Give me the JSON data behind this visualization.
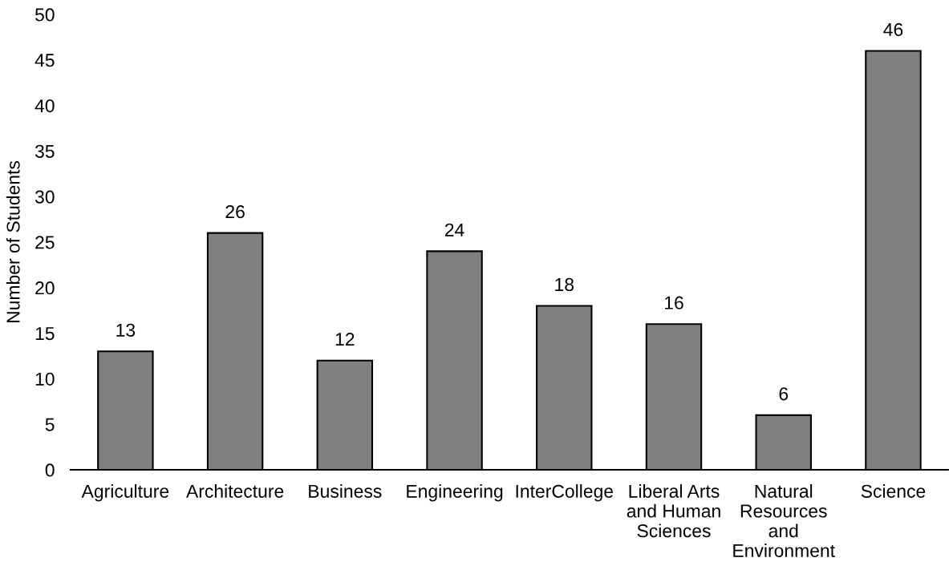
{
  "chart_data": {
    "type": "bar",
    "ylabel": "Number of Students",
    "categories": [
      "Agriculture",
      "Architecture",
      "Business",
      "Engineering",
      "InterCollege",
      "Liberal Arts\nand Human\nSciences",
      "Natural\nResources\nand\nEnvironment",
      "Science"
    ],
    "values": [
      13,
      26,
      12,
      24,
      18,
      16,
      6,
      46
    ],
    "color": "#808080",
    "ylim": [
      0,
      50
    ],
    "yticks": [
      0,
      5,
      10,
      15,
      20,
      25,
      30,
      35,
      40,
      45,
      50
    ],
    "grid": false,
    "data_labels": true
  }
}
